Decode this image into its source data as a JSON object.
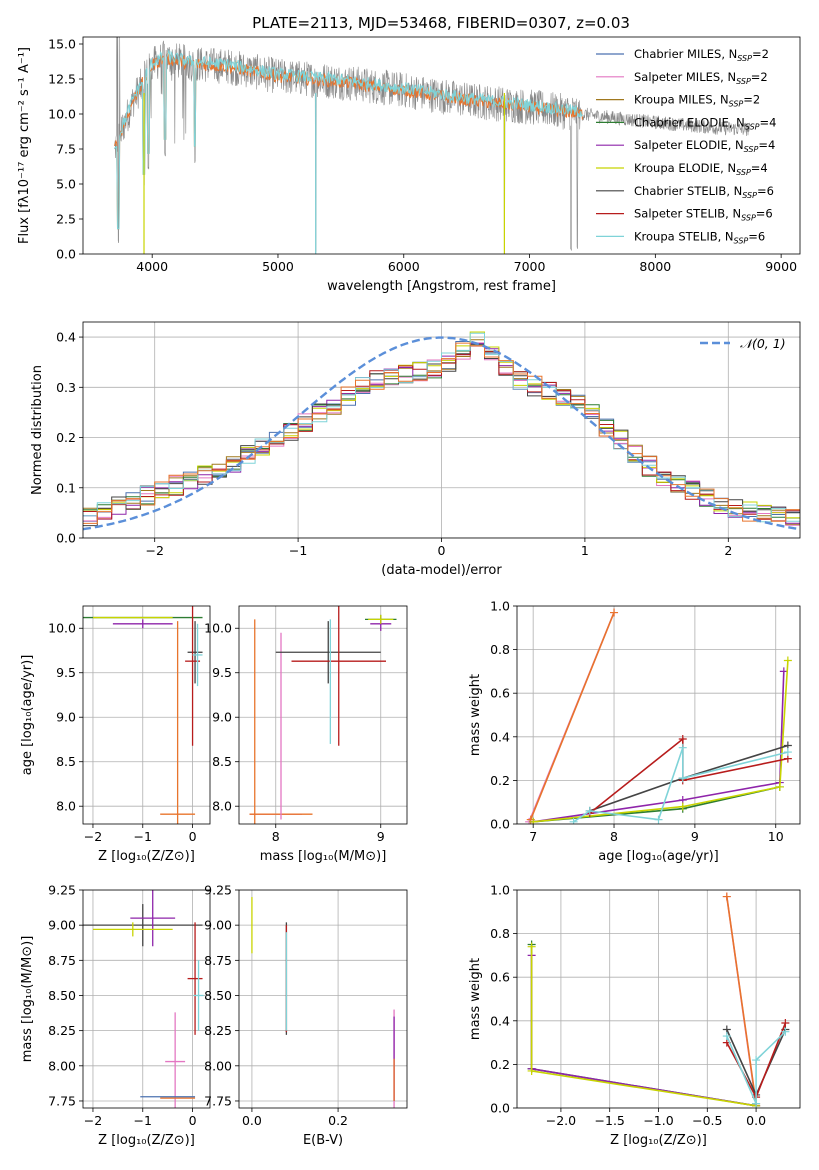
{
  "figure_title": "PLATE=2113, MJD=53468, FIBERID=0307, z=0.03",
  "chart_data": [
    {
      "id": "spectrum",
      "type": "line",
      "title": "PLATE=2113, MJD=53468, FIBERID=0307, z=0.03",
      "xlabel": "wavelength [Angstrom, rest frame]",
      "ylabel": "Flux [fλ10⁻¹⁷ erg cm⁻² s⁻¹ A⁻¹]",
      "xlim": [
        3450,
        9150
      ],
      "ylim": [
        0,
        15.5
      ],
      "xticks": [
        4000,
        5000,
        6000,
        7000,
        8000,
        9000
      ],
      "yticks": [
        0.0,
        2.5,
        5.0,
        7.5,
        10.0,
        12.5,
        15.0
      ],
      "grid": false,
      "legend_position": "top-right",
      "legend": [
        {
          "label": "Chabrier MILES, N_SSP=2",
          "color": "#4c72b0"
        },
        {
          "label": "Salpeter MILES, N_SSP=2",
          "color": "#e377c2"
        },
        {
          "label": "Kroupa MILES, N_SSP=2",
          "color": "#a0781e"
        },
        {
          "label": "Chabrier ELODIE, N_SSP=4",
          "color": "#2e7d32"
        },
        {
          "label": "Salpeter ELODIE, N_SSP=4",
          "color": "#8e24aa"
        },
        {
          "label": "Kroupa ELODIE, N_SSP=4",
          "color": "#c8d400"
        },
        {
          "label": "Chabrier STELIB, N_SSP=6",
          "color": "#444444"
        },
        {
          "label": "Salpeter STELIB, N_SSP=6",
          "color": "#b71c1c"
        },
        {
          "label": "Kroupa STELIB, N_SSP=6",
          "color": "#7fd3d8"
        }
      ],
      "data_color": "#888888",
      "model_colors": [
        "#e8742c",
        "#7fd3d8"
      ],
      "data_range": [
        3700,
        8750
      ],
      "model_range": [
        3700,
        7420
      ],
      "continuum": {
        "x": [
          3700,
          3850,
          4000,
          4100,
          4300,
          4600,
          5000,
          5500,
          6000,
          6500,
          7000,
          7500,
          8000,
          8500,
          8750
        ],
        "y": [
          7.5,
          11.0,
          13.5,
          14.0,
          13.6,
          13.4,
          12.7,
          12.3,
          11.7,
          11.0,
          10.5,
          9.9,
          9.4,
          9.0,
          8.9
        ]
      },
      "absorption_features": [
        {
          "x": 3730,
          "y": 0.6
        },
        {
          "x": 3935,
          "y": 4.5
        },
        {
          "x": 3970,
          "y": 6.0
        },
        {
          "x": 4102,
          "y": 7.0
        },
        {
          "x": 4340,
          "y": 6.5
        },
        {
          "x": 5300,
          "y": 0.0
        },
        {
          "x": 6800,
          "y": 0.0
        },
        {
          "x": 7330,
          "y": 0.0
        },
        {
          "x": 7380,
          "y": 0.0
        }
      ]
    },
    {
      "id": "residuals",
      "type": "line",
      "xlabel": "(data-model)/error",
      "ylabel": "Normed distribution",
      "xlim": [
        -2.5,
        2.5
      ],
      "ylim": [
        0,
        0.43
      ],
      "xticks": [
        -2,
        -1,
        0,
        1,
        2
      ],
      "yticks": [
        0.0,
        0.1,
        0.2,
        0.3,
        0.4
      ],
      "grid": true,
      "legend_position": "top-right",
      "legend": [
        {
          "label": "𝒩(0, 1)",
          "color": "#5b8fd9"
        }
      ],
      "normal": {
        "mean": 0,
        "sigma": 1
      },
      "bin_width": 0.1,
      "histogram_reference": {
        "x": [
          -2.5,
          -2.0,
          -1.5,
          -1.0,
          -0.5,
          0.0,
          0.25,
          0.5,
          1.0,
          1.5,
          2.0,
          2.5
        ],
        "y": [
          0.035,
          0.09,
          0.14,
          0.22,
          0.31,
          0.34,
          0.4,
          0.32,
          0.26,
          0.13,
          0.06,
          0.035
        ]
      }
    },
    {
      "id": "z-age",
      "type": "scatter",
      "xlabel": "Z [log₁₀(Z/Z⊙)]",
      "ylabel": "age  [log₁₀(age/yr)]",
      "xlim": [
        -2.2,
        0.35
      ],
      "ylim": [
        7.8,
        10.25
      ],
      "xticks": [
        -2,
        -1,
        0
      ],
      "yticks": [
        8.0,
        8.5,
        9.0,
        9.5,
        10.0
      ],
      "grid": true,
      "crosses": [
        {
          "x": -1.0,
          "y": 10.12,
          "xerr": 1.2,
          "yerr": 0.0,
          "color": "#2e7d32"
        },
        {
          "x": -1.0,
          "y": 10.05,
          "xerr": 0.6,
          "yerr": 0.05,
          "color": "#8e24aa"
        },
        {
          "x": -1.2,
          "y": 10.12,
          "xerr": 0.8,
          "yerr": 0.0,
          "color": "#c8d400"
        },
        {
          "x": 0.05,
          "y": 9.73,
          "xerr": 0.15,
          "yerr": 0.35,
          "color": "#444444"
        },
        {
          "x": 0.0,
          "y": 9.63,
          "xerr": 0.15,
          "yerr": 0.95,
          "color": "#b71c1c"
        },
        {
          "x": 0.1,
          "y": 9.7,
          "xerr": 0.1,
          "yerr": 0.35,
          "color": "#7fd3d8"
        },
        {
          "x": -0.3,
          "y": 7.91,
          "xerr": 0.35,
          "yerr": 2.17,
          "color": "#e8742c"
        }
      ]
    },
    {
      "id": "mass-age",
      "type": "scatter",
      "xlabel": "mass [log₁₀(M/M⊙)]",
      "xlim": [
        7.65,
        9.25
      ],
      "ylim": [
        7.8,
        10.25
      ],
      "xticks": [
        8,
        9
      ],
      "yticks": [
        8.0,
        8.5,
        9.0,
        9.5,
        10.0
      ],
      "grid": true,
      "crosses": [
        {
          "x": 8.0,
          "y": 7.91,
          "xerr": 0.25,
          "yerr": 0.0,
          "color": "#e377c2"
        },
        {
          "x": 8.05,
          "y": 7.91,
          "xerr": 0.3,
          "yerr": 0.0,
          "color": "#e8742c"
        },
        {
          "x": 7.8,
          "y": 8.0,
          "xerr": 0.0,
          "yerr": 2.1,
          "color": "#e8742c"
        },
        {
          "x": 8.05,
          "y": 8.9,
          "xerr": 0.0,
          "yerr": 1.05,
          "color": "#e377c2"
        },
        {
          "x": 8.5,
          "y": 9.73,
          "xerr": 0.5,
          "yerr": 0.35,
          "color": "#444444"
        },
        {
          "x": 8.6,
          "y": 9.63,
          "xerr": 0.45,
          "yerr": 0.95,
          "color": "#b71c1c"
        },
        {
          "x": 8.52,
          "y": 9.4,
          "xerr": 0.0,
          "yerr": 0.7,
          "color": "#7fd3d8"
        },
        {
          "x": 9.0,
          "y": 10.1,
          "xerr": 0.15,
          "yerr": 0.05,
          "color": "#2e7d32"
        },
        {
          "x": 9.0,
          "y": 10.05,
          "xerr": 0.1,
          "yerr": 0.08,
          "color": "#8e24aa"
        },
        {
          "x": 9.0,
          "y": 10.1,
          "xerr": 0.12,
          "yerr": 0.05,
          "color": "#c8d400"
        }
      ]
    },
    {
      "id": "age-weight",
      "type": "line",
      "xlabel": "age  [log₁₀(age/yr)]",
      "ylabel": "mass weight",
      "xlim": [
        6.8,
        10.3
      ],
      "ylim": [
        0,
        1.0
      ],
      "xticks": [
        7,
        8,
        9,
        10
      ],
      "yticks": [
        0.0,
        0.2,
        0.4,
        0.6,
        0.8,
        1.0
      ],
      "grid": true,
      "series": [
        {
          "color": "#e377c2",
          "points": [
            [
              6.95,
              0.01
            ],
            [
              8.0,
              0.97
            ]
          ]
        },
        {
          "color": "#e8742c",
          "points": [
            [
              6.97,
              0.02
            ],
            [
              8.0,
              0.97
            ]
          ]
        },
        {
          "color": "#2e7d32",
          "points": [
            [
              7.0,
              0.01
            ],
            [
              8.85,
              0.07
            ],
            [
              10.05,
              0.17
            ]
          ]
        },
        {
          "color": "#8e24aa",
          "points": [
            [
              7.0,
              0.01
            ],
            [
              8.85,
              0.11
            ],
            [
              10.05,
              0.19
            ],
            [
              10.1,
              0.7
            ]
          ]
        },
        {
          "color": "#c8d400",
          "points": [
            [
              7.0,
              0.01
            ],
            [
              8.85,
              0.08
            ],
            [
              10.05,
              0.17
            ],
            [
              10.15,
              0.75
            ]
          ]
        },
        {
          "color": "#444444",
          "points": [
            [
              7.7,
              0.06
            ],
            [
              8.85,
              0.21
            ],
            [
              10.15,
              0.36
            ]
          ]
        },
        {
          "color": "#b71c1c",
          "points": [
            [
              7.7,
              0.05
            ],
            [
              8.85,
              0.39
            ],
            [
              8.85,
              0.2
            ],
            [
              10.15,
              0.3
            ]
          ]
        },
        {
          "color": "#7fd3d8",
          "points": [
            [
              7.5,
              0.01
            ],
            [
              7.7,
              0.06
            ],
            [
              8.55,
              0.02
            ],
            [
              8.85,
              0.35
            ],
            [
              8.85,
              0.21
            ],
            [
              10.15,
              0.33
            ]
          ]
        }
      ]
    },
    {
      "id": "z-mass",
      "type": "scatter",
      "xlabel": "Z [log₁₀(Z/Z⊙)]",
      "ylabel": "mass [log₁₀(M/M⊙)]",
      "xlim": [
        -2.2,
        0.35
      ],
      "ylim": [
        7.7,
        9.25
      ],
      "xticks": [
        -2,
        -1,
        0
      ],
      "yticks": [
        7.75,
        8.0,
        8.25,
        8.5,
        8.75,
        9.0,
        9.25
      ],
      "grid": true,
      "crosses": [
        {
          "x": -1.0,
          "y": 9.0,
          "xerr": 1.2,
          "yerr": 0.15,
          "color": "#444444"
        },
        {
          "x": -0.8,
          "y": 9.05,
          "xerr": 0.45,
          "yerr": 0.2,
          "color": "#8e24aa"
        },
        {
          "x": -1.2,
          "y": 8.97,
          "xerr": 0.8,
          "yerr": 0.05,
          "color": "#c8d400"
        },
        {
          "x": -0.35,
          "y": 8.03,
          "xerr": 0.2,
          "yerr": 0.35,
          "color": "#e377c2"
        },
        {
          "x": -0.5,
          "y": 7.78,
          "xerr": 0.55,
          "yerr": 0.0,
          "color": "#4c72b0"
        },
        {
          "x": -0.3,
          "y": 7.77,
          "xerr": 0.35,
          "yerr": 0.0,
          "color": "#e8742c"
        },
        {
          "x": 0.05,
          "y": 8.62,
          "xerr": 0.15,
          "yerr": 0.4,
          "color": "#b71c1c"
        },
        {
          "x": 0.12,
          "y": 8.5,
          "xerr": 0.1,
          "yerr": 0.25,
          "color": "#7fd3d8"
        }
      ]
    },
    {
      "id": "ebv-mass",
      "type": "scatter",
      "xlabel": "E(B-V)",
      "xlim": [
        -0.03,
        0.36
      ],
      "ylim": [
        7.7,
        9.25
      ],
      "xticks": [
        0.0,
        0.2
      ],
      "yticks": [
        7.75,
        8.0,
        8.25,
        8.5,
        8.75,
        9.0,
        9.25
      ],
      "grid": true,
      "crosses": [
        {
          "x": 0.0,
          "y": 9.0,
          "xerr": 0.0,
          "yerr": 0.2,
          "color": "#c8d400"
        },
        {
          "x": 0.08,
          "y": 8.62,
          "xerr": 0.0,
          "yerr": 0.4,
          "color": "#444444"
        },
        {
          "x": 0.08,
          "y": 8.62,
          "xerr": 0.0,
          "yerr": 0.38,
          "color": "#b71c1c"
        },
        {
          "x": 0.08,
          "y": 8.6,
          "xerr": 0.0,
          "yerr": 0.35,
          "color": "#7fd3d8"
        },
        {
          "x": 0.33,
          "y": 8.0,
          "xerr": 0.0,
          "yerr": 0.4,
          "color": "#e377c2"
        },
        {
          "x": 0.33,
          "y": 8.05,
          "xerr": 0.0,
          "yerr": 0.3,
          "color": "#8e24aa"
        },
        {
          "x": 0.33,
          "y": 7.9,
          "xerr": 0.0,
          "yerr": 0.15,
          "color": "#e8742c"
        }
      ]
    },
    {
      "id": "z-weight",
      "type": "line",
      "xlabel": "Z [log₁₀(Z/Z⊙)]",
      "ylabel": "mass weight",
      "xlim": [
        -2.45,
        0.45
      ],
      "ylim": [
        0,
        1.0
      ],
      "xticks": [
        -2.0,
        -1.5,
        -1.0,
        -0.5,
        0.0
      ],
      "yticks": [
        0.0,
        0.2,
        0.4,
        0.6,
        0.8,
        1.0
      ],
      "grid": true,
      "series": [
        {
          "color": "#e377c2",
          "points": [
            [
              -0.3,
              0.97
            ],
            [
              0.0,
              0.01
            ]
          ]
        },
        {
          "color": "#e8742c",
          "points": [
            [
              -0.3,
              0.97
            ],
            [
              0.0,
              0.02
            ]
          ]
        },
        {
          "color": "#2e7d32",
          "points": [
            [
              -2.3,
              0.75
            ],
            [
              -2.3,
              0.18
            ],
            [
              0.0,
              0.01
            ]
          ]
        },
        {
          "color": "#8e24aa",
          "points": [
            [
              -2.3,
              0.7
            ],
            [
              -2.3,
              0.18
            ],
            [
              0.0,
              0.01
            ]
          ]
        },
        {
          "color": "#c8d400",
          "points": [
            [
              -2.3,
              0.74
            ],
            [
              -2.3,
              0.17
            ],
            [
              0.0,
              0.01
            ]
          ]
        },
        {
          "color": "#444444",
          "points": [
            [
              -0.3,
              0.36
            ],
            [
              0.0,
              0.06
            ],
            [
              0.3,
              0.36
            ]
          ]
        },
        {
          "color": "#b71c1c",
          "points": [
            [
              -0.3,
              0.3
            ],
            [
              0.0,
              0.05
            ],
            [
              0.3,
              0.39
            ]
          ]
        },
        {
          "color": "#7fd3d8",
          "points": [
            [
              -0.3,
              0.33
            ],
            [
              0.0,
              0.02
            ],
            [
              0.0,
              0.22
            ],
            [
              0.3,
              0.35
            ]
          ]
        }
      ]
    }
  ]
}
